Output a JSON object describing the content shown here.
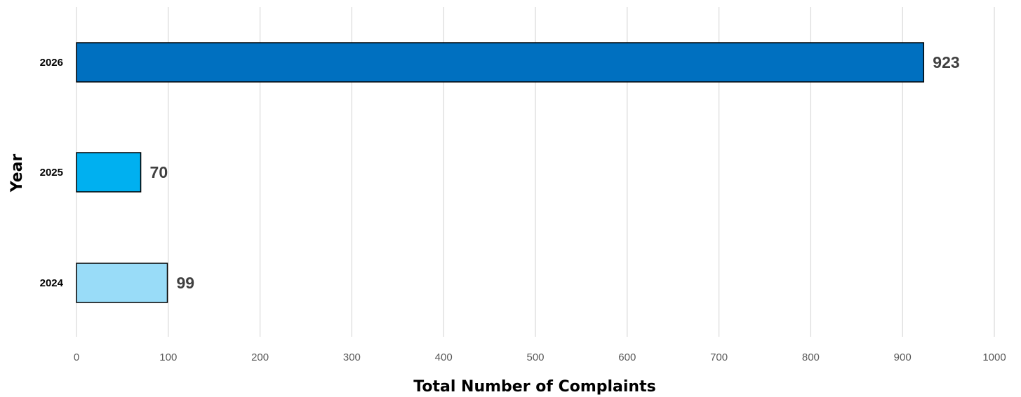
{
  "chart_data": {
    "type": "bar",
    "orientation": "horizontal",
    "title": "",
    "xlabel": "Total Number of Complaints",
    "ylabel": "Year",
    "xlim": [
      0,
      1000
    ],
    "x_ticks": [
      0,
      100,
      200,
      300,
      400,
      500,
      600,
      700,
      800,
      900,
      1000
    ],
    "grid": "vertical",
    "legend": "none",
    "categories": [
      "2026",
      "2025",
      "2024"
    ],
    "values": [
      923,
      70,
      99
    ],
    "data_labels": [
      "923",
      "70",
      "99"
    ],
    "bar_colors": [
      "#0070c0",
      "#00b0f0",
      "#99dcf8"
    ]
  }
}
